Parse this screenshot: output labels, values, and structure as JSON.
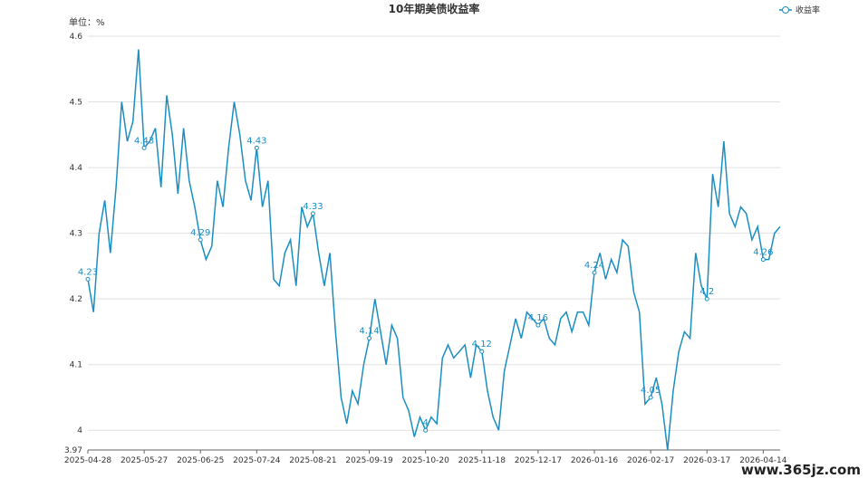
{
  "chart_data": {
    "type": "line",
    "title": "10年期美债收益率",
    "y_unit_label": "单位：%",
    "watermark": "www.365jz.com",
    "ylim": [
      3.97,
      4.6
    ],
    "yticks": [
      3.97,
      4,
      4.1,
      4.2,
      4.3,
      4.4,
      4.5,
      4.6
    ],
    "grid": true,
    "legend": "top-right",
    "categories": [
      "2025-04-28",
      null,
      null,
      null,
      null,
      null,
      null,
      null,
      null,
      null,
      "2025-05-27",
      null,
      null,
      null,
      null,
      null,
      null,
      null,
      null,
      null,
      "2025-06-25",
      null,
      null,
      null,
      null,
      null,
      null,
      null,
      null,
      null,
      "2025-07-24",
      null,
      null,
      null,
      null,
      null,
      null,
      null,
      null,
      null,
      "2025-08-21",
      null,
      null,
      null,
      null,
      null,
      null,
      null,
      null,
      null,
      "2025-09-19",
      null,
      null,
      null,
      null,
      null,
      null,
      null,
      null,
      null,
      "2025-10-20",
      null,
      null,
      null,
      null,
      null,
      null,
      null,
      null,
      null,
      "2025-11-18",
      null,
      null,
      null,
      null,
      null,
      null,
      null,
      null,
      null,
      "2025-12-17",
      null,
      null,
      null,
      null,
      null,
      null,
      null,
      null,
      null,
      "2026-01-16",
      null,
      null,
      null,
      null,
      null,
      null,
      null,
      null,
      null,
      "2026-02-17",
      null,
      null,
      null,
      null,
      null,
      null,
      null,
      null,
      null,
      "2026-03-17",
      null,
      null,
      null,
      null,
      null,
      null,
      null,
      null,
      null,
      "2026-04-14",
      null,
      null,
      null
    ],
    "series": [
      {
        "name": "收益率",
        "color": "#1b8ec2",
        "values": [
          4.23,
          4.18,
          4.3,
          4.35,
          4.27,
          4.37,
          4.5,
          4.44,
          4.47,
          4.58,
          4.43,
          4.44,
          4.46,
          4.37,
          4.51,
          4.45,
          4.36,
          4.46,
          4.38,
          4.34,
          4.29,
          4.26,
          4.28,
          4.38,
          4.34,
          4.43,
          4.5,
          4.45,
          4.38,
          4.35,
          4.43,
          4.34,
          4.38,
          4.23,
          4.22,
          4.27,
          4.29,
          4.22,
          4.34,
          4.31,
          4.33,
          4.27,
          4.22,
          4.27,
          4.15,
          4.05,
          4.01,
          4.06,
          4.04,
          4.1,
          4.14,
          4.2,
          4.15,
          4.1,
          4.16,
          4.14,
          4.05,
          4.03,
          3.99,
          4.02,
          4.0,
          4.02,
          4.01,
          4.11,
          4.13,
          4.11,
          4.12,
          4.13,
          4.08,
          4.13,
          4.12,
          4.06,
          4.02,
          4.0,
          4.09,
          4.13,
          4.17,
          4.14,
          4.18,
          4.17,
          4.16,
          4.17,
          4.14,
          4.13,
          4.17,
          4.18,
          4.15,
          4.18,
          4.18,
          4.16,
          4.24,
          4.27,
          4.23,
          4.26,
          4.24,
          4.29,
          4.28,
          4.21,
          4.18,
          4.04,
          4.05,
          4.08,
          4.04,
          3.97,
          4.06,
          4.12,
          4.15,
          4.14,
          4.27,
          4.22,
          4.2,
          4.39,
          4.34,
          4.44,
          4.33,
          4.31,
          4.34,
          4.33,
          4.29,
          4.31,
          4.26,
          4.26,
          4.3,
          4.31
        ],
        "value_labels": [
          "4.23",
          null,
          null,
          null,
          null,
          null,
          null,
          null,
          null,
          null,
          "4.43",
          null,
          null,
          null,
          null,
          null,
          null,
          null,
          null,
          null,
          "4.29",
          null,
          null,
          null,
          null,
          null,
          null,
          null,
          null,
          null,
          "4.43",
          null,
          null,
          null,
          null,
          null,
          null,
          null,
          null,
          null,
          "4.33",
          null,
          null,
          null,
          null,
          null,
          null,
          null,
          null,
          null,
          "4.14",
          null,
          null,
          null,
          null,
          null,
          null,
          null,
          null,
          null,
          "4",
          null,
          null,
          null,
          null,
          null,
          null,
          null,
          null,
          null,
          "4.12",
          null,
          null,
          null,
          null,
          null,
          null,
          null,
          null,
          null,
          "4.16",
          null,
          null,
          null,
          null,
          null,
          null,
          null,
          null,
          null,
          "4.24",
          null,
          null,
          null,
          null,
          null,
          null,
          null,
          null,
          null,
          "4.05",
          null,
          null,
          null,
          null,
          null,
          null,
          null,
          null,
          null,
          "4.2",
          null,
          null,
          null,
          null,
          null,
          null,
          null,
          null,
          null,
          "4.26",
          null,
          null,
          null
        ]
      }
    ]
  }
}
